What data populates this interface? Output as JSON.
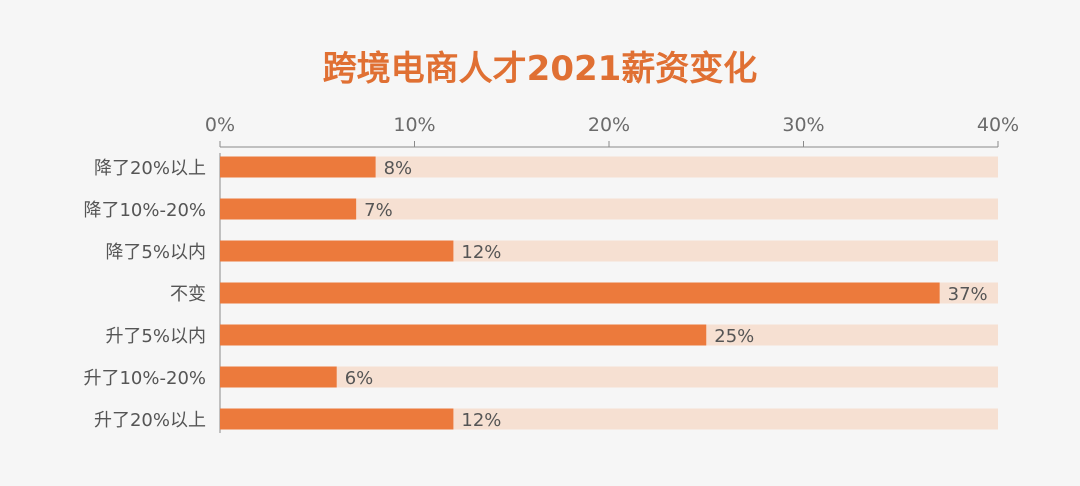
{
  "chart_data": {
    "type": "bar",
    "orientation": "horizontal",
    "title": "跨境电商人才2021薪资变化",
    "categories": [
      "降了20%以上",
      "降了10%-20%",
      "降了5%以内",
      "不变",
      "升了5%以内",
      "升了10%-20%",
      "升了20%以上"
    ],
    "values": [
      8,
      7,
      12,
      37,
      25,
      6,
      12
    ],
    "value_labels": [
      "8%",
      "7%",
      "12%",
      "37%",
      "25%",
      "6%",
      "12%"
    ],
    "x_ticks": [
      0,
      10,
      20,
      30,
      40
    ],
    "x_tick_labels": [
      "0%",
      "10%",
      "20%",
      "30%",
      "40%"
    ],
    "xlim": [
      0,
      40
    ],
    "xaxis_position": "top",
    "grid": false,
    "legend": "none",
    "colors": {
      "bar": "#ec7a3c",
      "track": "#f6e0d2",
      "title": "#e07033",
      "axis": "#8a8a8a",
      "text": "#555555",
      "background": "#f6f6f6"
    }
  }
}
